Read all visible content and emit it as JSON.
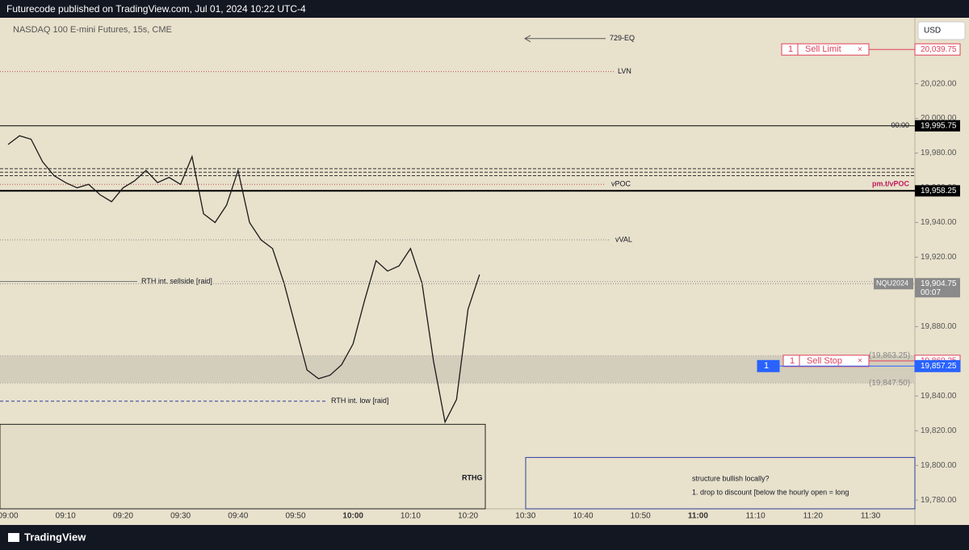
{
  "header": "Futurecode published on TradingView.com, Jul 01, 2024 10:22 UTC-4",
  "footer": "TradingView",
  "chart_data": {
    "type": "line",
    "title": "NASDAQ 100 E-mini Futures, 15s, CME",
    "currency": "USD",
    "color": "#1a1a1a",
    "categories": [
      "09:00",
      null,
      null,
      null,
      null,
      "09:10",
      null,
      null,
      null,
      null,
      "09:20",
      null,
      null,
      null,
      null,
      "09:30",
      null,
      null,
      null,
      null,
      "09:40",
      null,
      null,
      null,
      null,
      "09:50",
      null,
      null,
      null,
      null,
      "10:00",
      null,
      null,
      null,
      null,
      "10:10",
      null,
      null,
      null,
      null,
      "10:20",
      null,
      null,
      null,
      null,
      "10:30",
      null,
      null,
      null,
      null,
      "10:40",
      null,
      null,
      null,
      null,
      "10:50",
      null,
      null,
      null,
      null,
      "11:00",
      null,
      null,
      null,
      null,
      "11:10",
      null,
      null,
      null,
      null,
      "11:20",
      null,
      null,
      null,
      null,
      "11:30",
      null,
      null,
      null
    ],
    "values": [
      19985,
      19990,
      19988,
      19975,
      19967,
      19963,
      19960,
      19962,
      19956,
      19952,
      19960,
      19964,
      19970,
      19963,
      19966,
      19962,
      19978,
      19945,
      19940,
      19950,
      19970,
      19940,
      19930,
      19925,
      19905,
      19880,
      19855,
      19850,
      19852,
      19858,
      19870,
      19895,
      19918,
      19912,
      19915,
      19925,
      19905,
      19860,
      19825,
      19838,
      19890,
      19910,
      null,
      null,
      null,
      null,
      null,
      null,
      null,
      null,
      null,
      null,
      null,
      null,
      null,
      null,
      null,
      null,
      null,
      null,
      null,
      null,
      null,
      null,
      null,
      null,
      null,
      null,
      null,
      null,
      null,
      null,
      null,
      null,
      null,
      null,
      null,
      null,
      null
    ],
    "ylim": [
      19775,
      20058
    ],
    "yticks": [
      {
        "value": 19780,
        "label": "19,780.00"
      },
      {
        "value": 19800,
        "label": "19,800.00"
      },
      {
        "value": 19820,
        "label": "19,820.00"
      },
      {
        "value": 19840,
        "label": "19,840.00"
      },
      {
        "value": 19860,
        "label": "19,860.00"
      },
      {
        "value": 19880,
        "label": "19,880.00"
      },
      {
        "value": 19900,
        "label": "19,900.00"
      },
      {
        "value": 19920,
        "label": "19,920.00"
      },
      {
        "value": 19940,
        "label": "19,940.00"
      },
      {
        "value": 19960,
        "label": "19,960.00"
      },
      {
        "value": 19980,
        "label": "19,980.00"
      },
      {
        "value": 20000,
        "label": "20,000.00"
      },
      {
        "value": 20020,
        "label": "20,020.00"
      }
    ],
    "annotations": [
      {
        "text": "729-EQ",
        "value": 20046,
        "color": "#555555"
      },
      {
        "text": "LVN",
        "value": 20027,
        "color": "#c0504d"
      },
      {
        "text": "vPOC",
        "value": 19962,
        "color": "#c0504d"
      },
      {
        "text": "vVAL",
        "value": 19930,
        "color": "#888888"
      },
      {
        "text": "RTH int. sellside [raid]",
        "value": 19906,
        "color": "#777777"
      },
      {
        "text": "RTH int. low [raid]",
        "value": 19837,
        "color": "#2a3f9e"
      }
    ],
    "dashed_levels": [
      19971,
      19969,
      19967
    ],
    "price_levels": [
      {
        "tag": "00:00",
        "value": 19995.75,
        "label": "19,995.75",
        "color": "#000000"
      },
      {
        "tag": "pm.t/vPOC",
        "value": 19958.25,
        "label": "19,958.25",
        "color": "#000000"
      }
    ],
    "last_price": {
      "symbol": "NQU2024",
      "value": 19904.75,
      "label": "19,904.75",
      "countdown": "00:07"
    },
    "orders": [
      {
        "qty": "1",
        "text": "Sell Limit",
        "value": 20039.75,
        "label": "20,039.75",
        "color": "#e0405a"
      },
      {
        "qty": "1",
        "text": "Sell Stop",
        "value": 19860.25,
        "label": "19,860.25",
        "color": "#e0405a"
      },
      {
        "qty": "1",
        "value": 19857.25,
        "label": "19,857.25",
        "color": "#2962ff"
      }
    ],
    "zone": {
      "low": {
        "value": 19847.5,
        "label": "(19,847.50)"
      },
      "high": {
        "value": 19863.25,
        "label": "(19,863.25)"
      }
    },
    "rthg_box": {
      "text": "RTHG",
      "value": 19823.7
    },
    "note_box": {
      "value": 19804.6,
      "lines": [
        "structure bullish locally?",
        "1. drop to discount [below the hourly open = long"
      ]
    }
  }
}
